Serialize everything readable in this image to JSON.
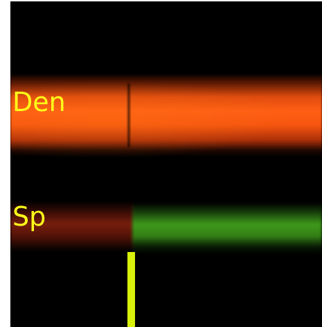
{
  "image": {
    "labels": {
      "den": "Den",
      "sp": "Sp"
    },
    "colors": {
      "background": "#000000",
      "label_text": "#ffff1a",
      "den_band": "#ff5f14",
      "sp_band_left": "#8c230f",
      "sp_band_right": "#46aa1e",
      "stimulus_bar": "#d8f00a"
    }
  }
}
